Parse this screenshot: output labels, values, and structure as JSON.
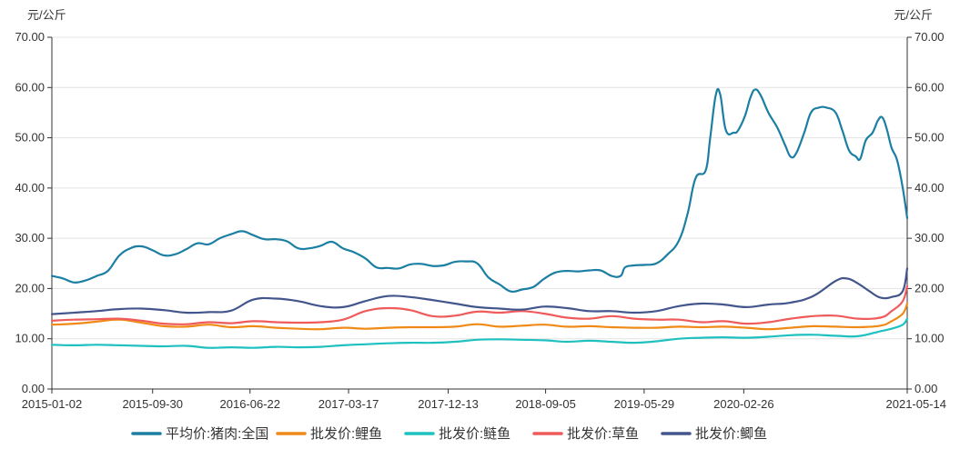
{
  "chart_data": {
    "type": "line",
    "y_unit_left": "元/公斤",
    "y_unit_right": "元/公斤",
    "ylim": [
      0,
      70
    ],
    "yticks": [
      "0.00",
      "10.00",
      "20.00",
      "30.00",
      "40.00",
      "50.00",
      "60.00",
      "70.00"
    ],
    "xlim_month_index": [
      0,
      76.4
    ],
    "x_tick_labels": [
      "2015-01-02",
      "2015-09-30",
      "2016-06-22",
      "2017-03-17",
      "2017-12-13",
      "2018-09-05",
      "2019-05-29",
      "2020-02-26",
      "2021-05-14"
    ],
    "x_tick_positions_month_index": [
      0,
      9,
      17.7,
      26.5,
      35.4,
      44.1,
      52.9,
      61.8,
      76.4
    ],
    "grid": true,
    "legend_position": "bottom",
    "series": [
      {
        "name": "平均价:猪肉:全国",
        "color": "#1b7fa3",
        "points": [
          [
            0,
            22.5
          ],
          [
            1,
            22.0
          ],
          [
            2,
            21.2
          ],
          [
            3,
            21.6
          ],
          [
            4,
            22.5
          ],
          [
            5,
            23.5
          ],
          [
            6,
            26.5
          ],
          [
            7,
            28.0
          ],
          [
            8,
            28.4
          ],
          [
            9,
            27.6
          ],
          [
            10,
            26.6
          ],
          [
            11,
            26.8
          ],
          [
            12,
            27.8
          ],
          [
            13,
            29.0
          ],
          [
            14,
            28.8
          ],
          [
            15,
            30.0
          ],
          [
            16,
            30.8
          ],
          [
            17,
            31.4
          ],
          [
            18,
            30.6
          ],
          [
            19,
            29.8
          ],
          [
            20,
            29.8
          ],
          [
            21,
            29.4
          ],
          [
            22,
            28.0
          ],
          [
            23,
            28.0
          ],
          [
            24,
            28.5
          ],
          [
            25,
            29.3
          ],
          [
            26,
            28.0
          ],
          [
            27,
            27.2
          ],
          [
            28,
            26.0
          ],
          [
            29,
            24.2
          ],
          [
            30,
            24.1
          ],
          [
            31,
            24.0
          ],
          [
            32,
            24.8
          ],
          [
            33,
            24.9
          ],
          [
            34,
            24.5
          ],
          [
            35,
            24.6
          ],
          [
            36,
            25.3
          ],
          [
            37,
            25.4
          ],
          [
            38,
            25.0
          ],
          [
            39,
            22.2
          ],
          [
            40,
            20.8
          ],
          [
            41,
            19.4
          ],
          [
            42,
            19.8
          ],
          [
            43,
            20.3
          ],
          [
            44,
            22.0
          ],
          [
            45,
            23.2
          ],
          [
            46,
            23.5
          ],
          [
            47,
            23.4
          ],
          [
            48,
            23.6
          ],
          [
            49,
            23.6
          ],
          [
            50,
            22.5
          ],
          [
            50.8,
            22.5
          ],
          [
            51.2,
            24.2
          ],
          [
            52,
            24.6
          ],
          [
            53,
            24.7
          ],
          [
            54,
            25.0
          ],
          [
            55,
            26.8
          ],
          [
            56,
            29.5
          ],
          [
            56.8,
            35.0
          ],
          [
            57.5,
            42.0
          ],
          [
            58.4,
            43.5
          ],
          [
            58.8,
            50.0
          ],
          [
            59.3,
            58.5
          ],
          [
            59.7,
            58.6
          ],
          [
            60.2,
            51.5
          ],
          [
            60.9,
            51.0
          ],
          [
            61.3,
            51.5
          ],
          [
            61.9,
            54.3
          ],
          [
            62.4,
            58.0
          ],
          [
            62.8,
            59.6
          ],
          [
            63.3,
            58.5
          ],
          [
            64.0,
            55.0
          ],
          [
            64.8,
            52.0
          ],
          [
            65.5,
            48.5
          ],
          [
            66.0,
            46.2
          ],
          [
            66.5,
            47.0
          ],
          [
            67.2,
            51.0
          ],
          [
            67.8,
            55.0
          ],
          [
            68.5,
            56.0
          ],
          [
            69.2,
            56.0
          ],
          [
            70.0,
            55.0
          ],
          [
            70.6,
            51.5
          ],
          [
            71.2,
            47.5
          ],
          [
            71.8,
            46.3
          ],
          [
            72.2,
            45.8
          ],
          [
            72.7,
            49.5
          ],
          [
            73.3,
            51.0
          ],
          [
            73.8,
            53.5
          ],
          [
            74.2,
            54.0
          ],
          [
            74.6,
            51.5
          ],
          [
            75.0,
            48.0
          ],
          [
            75.5,
            45.5
          ],
          [
            76.0,
            40.0
          ],
          [
            76.4,
            34.0
          ]
        ]
      },
      {
        "name": "批发价:鲤鱼",
        "color": "#f08a16",
        "points": [
          [
            0,
            12.8
          ],
          [
            2,
            13.0
          ],
          [
            4,
            13.4
          ],
          [
            6,
            13.8
          ],
          [
            8,
            13.2
          ],
          [
            10,
            12.5
          ],
          [
            12,
            12.4
          ],
          [
            14,
            12.8
          ],
          [
            16,
            12.3
          ],
          [
            18,
            12.5
          ],
          [
            20,
            12.2
          ],
          [
            22,
            12.0
          ],
          [
            24,
            11.9
          ],
          [
            26,
            12.2
          ],
          [
            28,
            12.0
          ],
          [
            30,
            12.2
          ],
          [
            32,
            12.3
          ],
          [
            34,
            12.3
          ],
          [
            36,
            12.4
          ],
          [
            38,
            12.9
          ],
          [
            40,
            12.4
          ],
          [
            42,
            12.6
          ],
          [
            44,
            12.8
          ],
          [
            46,
            12.4
          ],
          [
            48,
            12.5
          ],
          [
            50,
            12.3
          ],
          [
            52,
            12.2
          ],
          [
            54,
            12.2
          ],
          [
            56,
            12.4
          ],
          [
            58,
            12.3
          ],
          [
            60,
            12.4
          ],
          [
            62,
            12.2
          ],
          [
            64,
            11.9
          ],
          [
            66,
            12.2
          ],
          [
            68,
            12.5
          ],
          [
            70,
            12.4
          ],
          [
            72,
            12.3
          ],
          [
            74,
            12.6
          ],
          [
            75,
            13.5
          ],
          [
            76,
            15.0
          ],
          [
            76.4,
            17.0
          ]
        ]
      },
      {
        "name": "批发价:鲢鱼",
        "color": "#1fc0c0",
        "points": [
          [
            0,
            8.8
          ],
          [
            2,
            8.7
          ],
          [
            4,
            8.8
          ],
          [
            6,
            8.7
          ],
          [
            8,
            8.6
          ],
          [
            10,
            8.5
          ],
          [
            12,
            8.6
          ],
          [
            14,
            8.2
          ],
          [
            16,
            8.3
          ],
          [
            18,
            8.2
          ],
          [
            20,
            8.4
          ],
          [
            22,
            8.3
          ],
          [
            24,
            8.4
          ],
          [
            26,
            8.7
          ],
          [
            28,
            8.9
          ],
          [
            30,
            9.1
          ],
          [
            32,
            9.2
          ],
          [
            34,
            9.2
          ],
          [
            36,
            9.4
          ],
          [
            38,
            9.8
          ],
          [
            40,
            9.9
          ],
          [
            42,
            9.8
          ],
          [
            44,
            9.7
          ],
          [
            46,
            9.4
          ],
          [
            48,
            9.6
          ],
          [
            50,
            9.4
          ],
          [
            52,
            9.2
          ],
          [
            54,
            9.5
          ],
          [
            56,
            10.0
          ],
          [
            58,
            10.2
          ],
          [
            60,
            10.3
          ],
          [
            62,
            10.2
          ],
          [
            64,
            10.4
          ],
          [
            66,
            10.7
          ],
          [
            68,
            10.8
          ],
          [
            70,
            10.6
          ],
          [
            72,
            10.5
          ],
          [
            74,
            11.5
          ],
          [
            75,
            12.0
          ],
          [
            76,
            12.8
          ],
          [
            76.4,
            14.0
          ]
        ]
      },
      {
        "name": "批发价:草鱼",
        "color": "#ef5b5b",
        "points": [
          [
            0,
            13.6
          ],
          [
            2,
            13.8
          ],
          [
            4,
            13.9
          ],
          [
            6,
            14.0
          ],
          [
            8,
            13.6
          ],
          [
            10,
            13.0
          ],
          [
            12,
            12.9
          ],
          [
            14,
            13.3
          ],
          [
            16,
            13.1
          ],
          [
            18,
            13.5
          ],
          [
            20,
            13.3
          ],
          [
            22,
            13.2
          ],
          [
            24,
            13.3
          ],
          [
            26,
            13.8
          ],
          [
            28,
            15.5
          ],
          [
            30,
            16.1
          ],
          [
            32,
            15.7
          ],
          [
            34,
            14.5
          ],
          [
            36,
            14.6
          ],
          [
            38,
            15.4
          ],
          [
            40,
            15.2
          ],
          [
            42,
            15.5
          ],
          [
            44,
            15.0
          ],
          [
            46,
            14.2
          ],
          [
            48,
            14.0
          ],
          [
            50,
            14.5
          ],
          [
            52,
            14.0
          ],
          [
            54,
            13.8
          ],
          [
            56,
            13.8
          ],
          [
            58,
            13.3
          ],
          [
            60,
            13.5
          ],
          [
            62,
            13.0
          ],
          [
            64,
            13.3
          ],
          [
            66,
            14.0
          ],
          [
            68,
            14.5
          ],
          [
            70,
            14.6
          ],
          [
            72,
            14.0
          ],
          [
            74,
            14.2
          ],
          [
            75,
            15.5
          ],
          [
            76,
            17.5
          ],
          [
            76.4,
            20.5
          ]
        ]
      },
      {
        "name": "批发价:鲫鱼",
        "color": "#43568c",
        "points": [
          [
            0,
            14.9
          ],
          [
            2,
            15.2
          ],
          [
            4,
            15.5
          ],
          [
            6,
            15.9
          ],
          [
            8,
            16.0
          ],
          [
            10,
            15.7
          ],
          [
            12,
            15.2
          ],
          [
            14,
            15.3
          ],
          [
            16,
            15.6
          ],
          [
            18,
            17.8
          ],
          [
            20,
            18.0
          ],
          [
            22,
            17.5
          ],
          [
            24,
            16.5
          ],
          [
            26,
            16.3
          ],
          [
            28,
            17.5
          ],
          [
            30,
            18.5
          ],
          [
            32,
            18.3
          ],
          [
            34,
            17.7
          ],
          [
            36,
            17.0
          ],
          [
            38,
            16.3
          ],
          [
            40,
            16.0
          ],
          [
            42,
            15.8
          ],
          [
            44,
            16.4
          ],
          [
            46,
            16.1
          ],
          [
            48,
            15.5
          ],
          [
            50,
            15.5
          ],
          [
            52,
            15.2
          ],
          [
            54,
            15.5
          ],
          [
            56,
            16.5
          ],
          [
            58,
            17.0
          ],
          [
            60,
            16.8
          ],
          [
            62,
            16.3
          ],
          [
            64,
            16.8
          ],
          [
            66,
            17.2
          ],
          [
            68,
            18.5
          ],
          [
            70,
            21.5
          ],
          [
            71,
            22.0
          ],
          [
            72,
            21.0
          ],
          [
            73,
            19.5
          ],
          [
            74,
            18.2
          ],
          [
            75,
            18.3
          ],
          [
            76,
            19.5
          ],
          [
            76.4,
            24.0
          ]
        ]
      }
    ]
  }
}
